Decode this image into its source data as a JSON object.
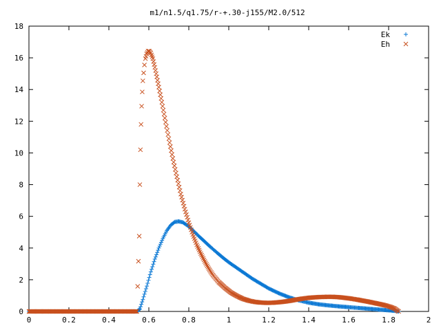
{
  "chart_data": {
    "type": "scatter",
    "title": "m1/n1.5/q1.75/r-+.30-j155/M2.0/512",
    "xlabel": "",
    "ylabel": "",
    "xlim": [
      0,
      2
    ],
    "ylim": [
      0,
      18
    ],
    "x_ticks": [
      "0",
      "0.2",
      "0.4",
      "0.6",
      "0.8",
      "1",
      "1.2",
      "1.4",
      "1.6",
      "1.8",
      "2"
    ],
    "y_ticks": [
      "0",
      "2",
      "4",
      "6",
      "8",
      "10",
      "12",
      "14",
      "16",
      "18"
    ],
    "grid": false,
    "legend_position": "top-right",
    "series": [
      {
        "name": "Ek",
        "marker": "plus",
        "color": "#0b78d4",
        "points": [
          [
            0.0,
            0.0
          ],
          [
            0.05,
            0.0
          ],
          [
            0.1,
            0.0
          ],
          [
            0.15,
            0.0
          ],
          [
            0.2,
            0.0
          ],
          [
            0.25,
            0.0
          ],
          [
            0.3,
            0.0
          ],
          [
            0.35,
            0.0
          ],
          [
            0.4,
            0.0
          ],
          [
            0.45,
            0.0
          ],
          [
            0.5,
            0.0
          ],
          [
            0.54,
            0.0
          ],
          [
            0.555,
            0.15
          ],
          [
            0.57,
            0.75
          ],
          [
            0.59,
            1.6
          ],
          [
            0.61,
            2.5
          ],
          [
            0.63,
            3.3
          ],
          [
            0.65,
            4.0
          ],
          [
            0.67,
            4.6
          ],
          [
            0.69,
            5.1
          ],
          [
            0.71,
            5.45
          ],
          [
            0.73,
            5.65
          ],
          [
            0.75,
            5.68
          ],
          [
            0.77,
            5.62
          ],
          [
            0.79,
            5.45
          ],
          [
            0.81,
            5.25
          ],
          [
            0.83,
            5.0
          ],
          [
            0.85,
            4.75
          ],
          [
            0.88,
            4.4
          ],
          [
            0.91,
            4.05
          ],
          [
            0.94,
            3.72
          ],
          [
            0.97,
            3.4
          ],
          [
            1.0,
            3.1
          ],
          [
            1.04,
            2.75
          ],
          [
            1.08,
            2.4
          ],
          [
            1.12,
            2.05
          ],
          [
            1.16,
            1.75
          ],
          [
            1.2,
            1.45
          ],
          [
            1.25,
            1.15
          ],
          [
            1.3,
            0.9
          ],
          [
            1.35,
            0.7
          ],
          [
            1.4,
            0.55
          ],
          [
            1.45,
            0.45
          ],
          [
            1.5,
            0.38
          ],
          [
            1.55,
            0.32
          ],
          [
            1.6,
            0.27
          ],
          [
            1.65,
            0.22
          ],
          [
            1.7,
            0.17
          ],
          [
            1.75,
            0.12
          ],
          [
            1.8,
            0.07
          ],
          [
            1.83,
            0.04
          ],
          [
            1.85,
            0.0
          ]
        ]
      },
      {
        "name": "Eh",
        "marker": "cross",
        "color": "#c8501e",
        "points": [
          [
            0.0,
            0.0
          ],
          [
            0.05,
            0.0
          ],
          [
            0.1,
            0.0
          ],
          [
            0.15,
            0.0
          ],
          [
            0.2,
            0.0
          ],
          [
            0.25,
            0.0
          ],
          [
            0.3,
            0.0
          ],
          [
            0.35,
            0.0
          ],
          [
            0.4,
            0.0
          ],
          [
            0.45,
            0.0
          ],
          [
            0.5,
            0.0
          ],
          [
            0.54,
            0.0
          ],
          [
            0.552,
            4.75
          ],
          [
            0.555,
            8.0
          ],
          [
            0.558,
            10.2
          ],
          [
            0.561,
            11.8
          ],
          [
            0.564,
            12.95
          ],
          [
            0.567,
            13.85
          ],
          [
            0.57,
            14.55
          ],
          [
            0.574,
            15.05
          ],
          [
            0.578,
            15.55
          ],
          [
            0.583,
            15.95
          ],
          [
            0.589,
            16.25
          ],
          [
            0.596,
            16.42
          ],
          [
            0.603,
            16.42
          ],
          [
            0.61,
            16.3
          ],
          [
            0.62,
            15.95
          ],
          [
            0.63,
            15.4
          ],
          [
            0.64,
            14.8
          ],
          [
            0.65,
            14.15
          ],
          [
            0.665,
            13.2
          ],
          [
            0.68,
            12.2
          ],
          [
            0.7,
            10.9
          ],
          [
            0.72,
            9.65
          ],
          [
            0.74,
            8.5
          ],
          [
            0.76,
            7.4
          ],
          [
            0.78,
            6.45
          ],
          [
            0.8,
            5.6
          ],
          [
            0.82,
            4.85
          ],
          [
            0.84,
            4.2
          ],
          [
            0.86,
            3.65
          ],
          [
            0.88,
            3.15
          ],
          [
            0.9,
            2.7
          ],
          [
            0.92,
            2.3
          ],
          [
            0.95,
            1.85
          ],
          [
            0.98,
            1.5
          ],
          [
            1.01,
            1.2
          ],
          [
            1.04,
            0.98
          ],
          [
            1.07,
            0.8
          ],
          [
            1.1,
            0.68
          ],
          [
            1.13,
            0.6
          ],
          [
            1.16,
            0.56
          ],
          [
            1.19,
            0.54
          ],
          [
            1.22,
            0.55
          ],
          [
            1.25,
            0.58
          ],
          [
            1.28,
            0.62
          ],
          [
            1.31,
            0.68
          ],
          [
            1.34,
            0.75
          ],
          [
            1.37,
            0.81
          ],
          [
            1.4,
            0.86
          ],
          [
            1.43,
            0.89
          ],
          [
            1.46,
            0.91
          ],
          [
            1.49,
            0.92
          ],
          [
            1.52,
            0.92
          ],
          [
            1.55,
            0.9
          ],
          [
            1.58,
            0.86
          ],
          [
            1.61,
            0.81
          ],
          [
            1.64,
            0.75
          ],
          [
            1.67,
            0.68
          ],
          [
            1.7,
            0.61
          ],
          [
            1.73,
            0.53
          ],
          [
            1.76,
            0.45
          ],
          [
            1.79,
            0.36
          ],
          [
            1.81,
            0.28
          ],
          [
            1.83,
            0.18
          ],
          [
            1.85,
            0.0
          ]
        ]
      }
    ]
  }
}
